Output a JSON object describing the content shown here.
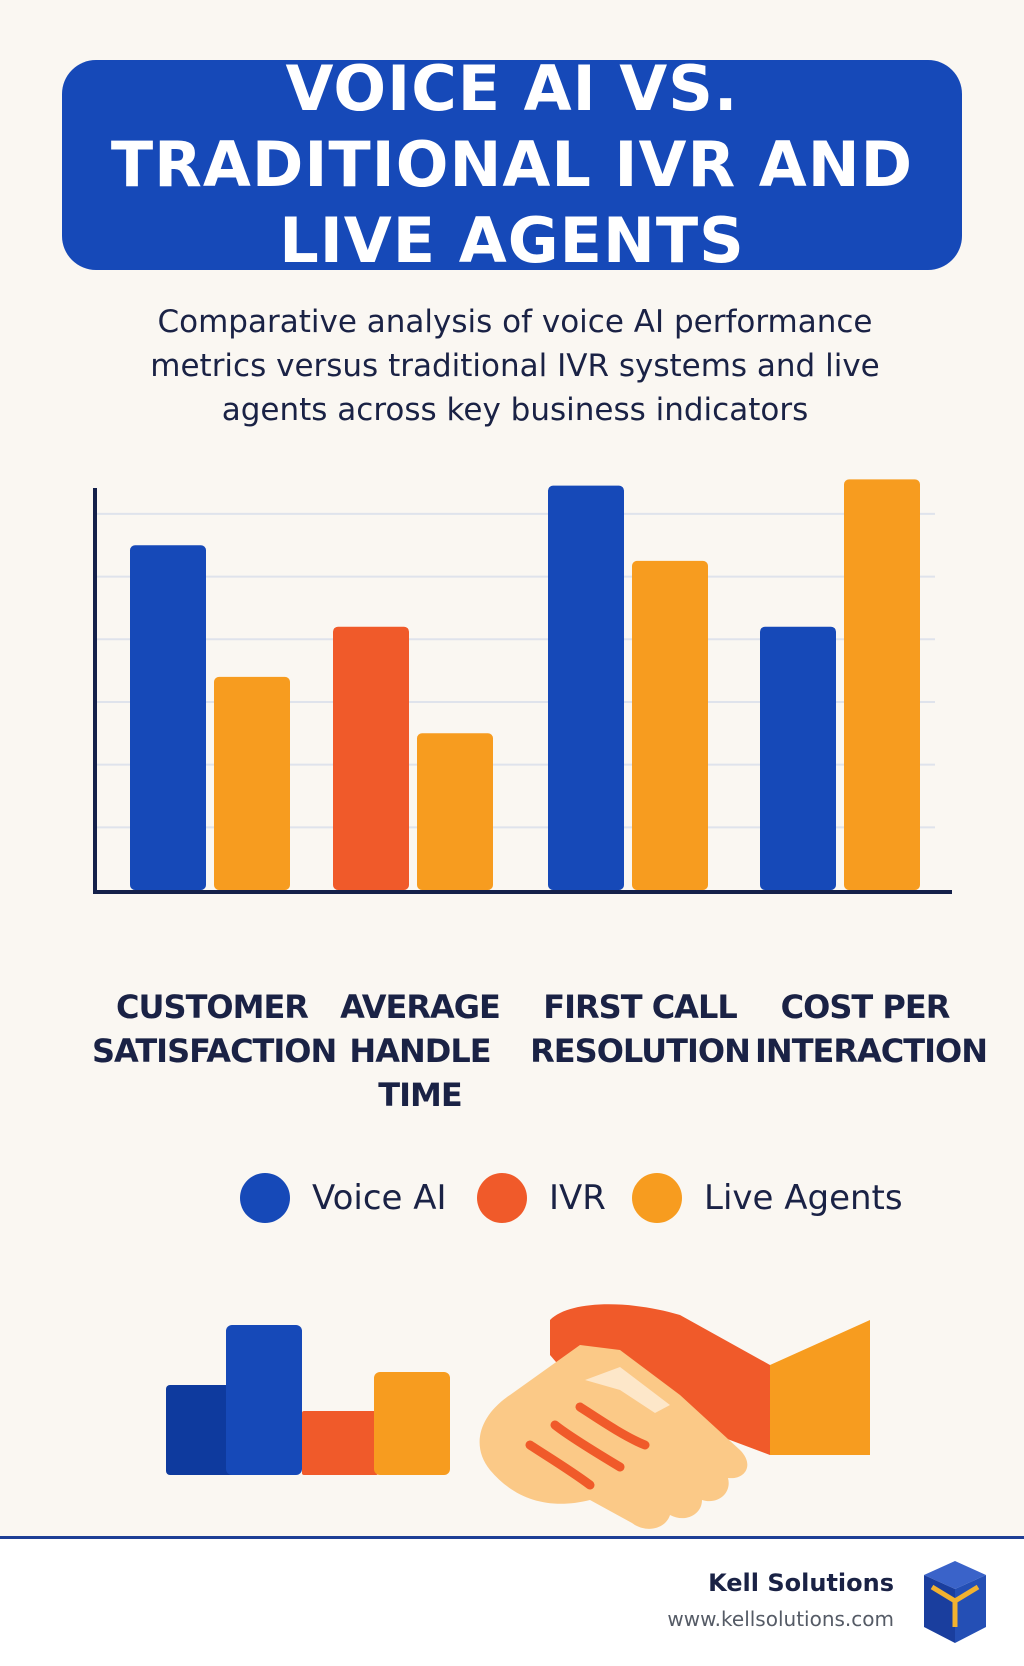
{
  "title": "VOICE AI VS. TRADITIONAL IVR AND LIVE AGENTS",
  "subtitle": "Comparative analysis of voice AI performance metrics versus traditional IVR systems and live agents across key business indicators",
  "chart_data": {
    "type": "bar",
    "categories": [
      "CUSTOMER SATISFACTION",
      "AVERAGE HANDLE TIME",
      "FIRST CALL RESOLUTION",
      "COST PER INTERACTION"
    ],
    "bars": [
      {
        "category": 0,
        "series": "Voice AI",
        "value": 5.5
      },
      {
        "category": 0,
        "series": "Live Agents",
        "value": 3.4
      },
      {
        "category": 1,
        "series": "IVR",
        "value": 4.2
      },
      {
        "category": 1,
        "series": "Live Agents",
        "value": 2.5
      },
      {
        "category": 2,
        "series": "Voice AI",
        "value": 6.45
      },
      {
        "category": 2,
        "series": "Live Agents",
        "value": 5.25
      },
      {
        "category": 3,
        "series": "Voice AI",
        "value": 4.2
      },
      {
        "category": 3,
        "series": "Live Agents",
        "value": 6.55
      }
    ],
    "ylim": [
      0,
      6.7
    ],
    "gridlines": [
      1,
      2,
      3,
      4,
      5,
      6
    ],
    "grid": true,
    "legend_position": "bottom"
  },
  "legend": [
    {
      "label": "Voice AI",
      "color": "#1649b8"
    },
    {
      "label": "IVR",
      "color": "#f05a2a"
    },
    {
      "label": "Live Agents",
      "color": "#f79c1f"
    }
  ],
  "colors": {
    "voice_ai": "#1649b8",
    "ivr": "#f05a2a",
    "live_agents": "#f79c1f",
    "axis": "#14204a",
    "grid": "#dfe3ec",
    "banner": "#1649b8"
  },
  "footer": {
    "brand_name": "Kell Solutions",
    "brand_url": "www.kellsolutions.com"
  },
  "icons": [
    "bar-chart-icon",
    "handshake-icon",
    "cube-logo-icon"
  ]
}
